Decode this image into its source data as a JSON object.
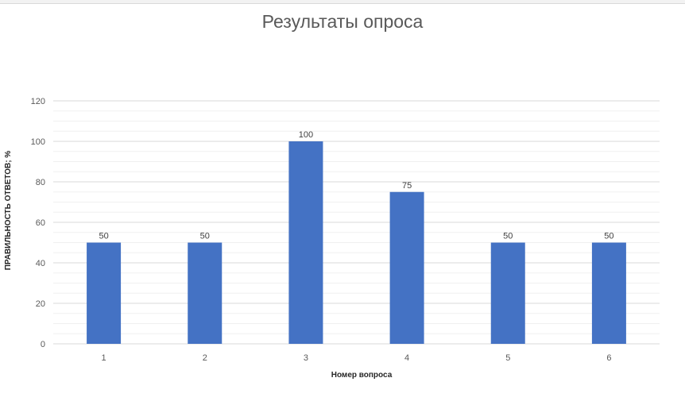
{
  "chart_data": {
    "type": "bar",
    "title": "Результаты опроса",
    "xlabel": "Номер вопроса",
    "ylabel": "ПРАВИЛЬНОСТЬ ОТВЕТОВ; %",
    "categories": [
      "1",
      "2",
      "3",
      "4",
      "5",
      "6"
    ],
    "values": [
      50,
      50,
      100,
      75,
      50,
      50
    ],
    "ylim": [
      0,
      120
    ],
    "yticks": [
      "0",
      "20",
      "40",
      "60",
      "80",
      "100",
      "120"
    ],
    "grid": true,
    "legend": "none",
    "bar_color": "#4472C4",
    "gridline_color": "#d9d9d9",
    "minor_gridline_color": "#f0f0f0"
  }
}
